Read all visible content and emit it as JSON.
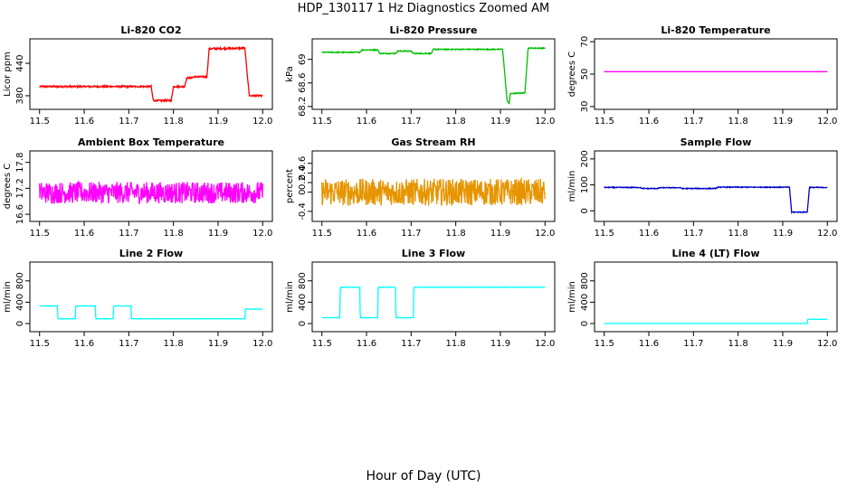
{
  "figure": {
    "title": "HDP_130117  1 Hz Diagnostics Zoomed AM",
    "xlabel": "Hour of Day (UTC)"
  },
  "chart_data": [
    {
      "type": "line",
      "title": "Li-820 CO2",
      "ylabel": "Licor ppm",
      "color": "#ff0000",
      "xlim": [
        11.5,
        12.0
      ],
      "ylim": [
        360,
        480
      ],
      "xticks": [
        "11.5",
        "11.6",
        "11.7",
        "11.8",
        "11.9",
        "12.0"
      ],
      "yticks": [
        380,
        440
      ],
      "series": [
        {
          "name": "CO2",
          "noise": 1.5,
          "points": [
            [
              11.5,
              397
            ],
            [
              11.75,
              397
            ],
            [
              11.755,
              371
            ],
            [
              11.795,
              371
            ],
            [
              11.8,
              397
            ],
            [
              11.825,
              397
            ],
            [
              11.83,
              413
            ],
            [
              11.84,
              413
            ],
            [
              11.845,
              415
            ],
            [
              11.875,
              415
            ],
            [
              11.88,
              467
            ],
            [
              11.96,
              468
            ],
            [
              11.97,
              380
            ],
            [
              12.0,
              380
            ]
          ]
        }
      ]
    },
    {
      "type": "line",
      "title": "Li-820 Pressure",
      "ylabel": "kPa",
      "color": "#00c000",
      "xlim": [
        11.5,
        12.0
      ],
      "ylim": [
        68.2,
        69.3
      ],
      "xticks": [
        "11.5",
        "11.6",
        "11.7",
        "11.8",
        "11.9",
        "12.0"
      ],
      "yticks": [
        68.2,
        68.6,
        69.0
      ],
      "series": [
        {
          "name": "Pressure",
          "noise": 0.008,
          "points": [
            [
              11.5,
              69.12
            ],
            [
              11.585,
              69.12
            ],
            [
              11.59,
              69.16
            ],
            [
              11.625,
              69.16
            ],
            [
              11.63,
              69.1
            ],
            [
              11.665,
              69.1
            ],
            [
              11.67,
              69.14
            ],
            [
              11.7,
              69.14
            ],
            [
              11.705,
              69.1
            ],
            [
              11.745,
              69.1
            ],
            [
              11.75,
              69.17
            ],
            [
              11.905,
              69.17
            ],
            [
              11.915,
              68.3
            ],
            [
              11.92,
              68.25
            ],
            [
              11.922,
              68.42
            ],
            [
              11.955,
              68.43
            ],
            [
              11.962,
              69.19
            ],
            [
              12.0,
              69.19
            ]
          ]
        }
      ]
    },
    {
      "type": "line",
      "title": "Li-820 Temperature",
      "ylabel": "degrees C",
      "color": "#ff00ff",
      "xlim": [
        11.5,
        12.0
      ],
      "ylim": [
        30,
        70
      ],
      "xticks": [
        "11.5",
        "11.6",
        "11.7",
        "11.8",
        "11.9",
        "12.0"
      ],
      "yticks": [
        30,
        50,
        70
      ],
      "series": [
        {
          "name": "Temperature",
          "noise": 0,
          "points": [
            [
              11.5,
              51.5
            ],
            [
              12.0,
              51.5
            ]
          ]
        }
      ]
    },
    {
      "type": "line",
      "title": "Ambient Box Temperature",
      "ylabel": "degrees C",
      "color": "#ff00ff",
      "xlim": [
        11.5,
        12.0
      ],
      "ylim": [
        16.5,
        18.0
      ],
      "xticks": [
        "11.5",
        "11.6",
        "11.7",
        "11.8",
        "11.9",
        "12.0"
      ],
      "yticks": [
        16.6,
        17.2,
        17.8
      ],
      "series": [
        {
          "name": "Box Temp",
          "noise": 0.25,
          "points": [
            [
              11.5,
              17.1
            ],
            [
              12.0,
              17.1
            ]
          ]
        }
      ]
    },
    {
      "type": "line",
      "title": "Gas Stream RH",
      "ylabel": "percent",
      "color": "#e69500",
      "xlim": [
        11.5,
        12.0
      ],
      "ylim": [
        -0.55,
        0.8
      ],
      "xticks": [
        "11.5",
        "11.6",
        "11.7",
        "11.8",
        "11.9",
        "12.0"
      ],
      "yticks": [
        -0.4,
        0.0,
        0.2,
        0.4,
        0.6
      ],
      "series": [
        {
          "name": "RH",
          "noise": 0.28,
          "points": [
            [
              11.5,
              0.0
            ],
            [
              12.0,
              0.0
            ]
          ]
        }
      ]
    },
    {
      "type": "line",
      "title": "Sample Flow",
      "ylabel": "ml/min",
      "color": "#0000cc",
      "xlim": [
        11.5,
        12.0
      ],
      "ylim": [
        -30,
        220
      ],
      "xticks": [
        "11.5",
        "11.6",
        "11.7",
        "11.8",
        "11.9",
        "12.0"
      ],
      "yticks": [
        0,
        100,
        200
      ],
      "series": [
        {
          "name": "Sample Flow",
          "noise": 1.5,
          "points": [
            [
              11.5,
              90
            ],
            [
              11.58,
              90
            ],
            [
              11.585,
              86
            ],
            [
              11.62,
              86
            ],
            [
              11.625,
              89
            ],
            [
              11.67,
              89
            ],
            [
              11.675,
              86
            ],
            [
              11.75,
              86
            ],
            [
              11.755,
              91
            ],
            [
              11.915,
              91
            ],
            [
              11.92,
              -5
            ],
            [
              11.955,
              -5
            ],
            [
              11.96,
              90
            ],
            [
              12.0,
              90
            ]
          ]
        }
      ]
    },
    {
      "type": "line",
      "title": "Line 2 Flow",
      "ylabel": "ml/min",
      "color": "#00ffff",
      "xlim": [
        11.5,
        12.0
      ],
      "ylim": [
        -100,
        1100
      ],
      "xticks": [
        "11.5",
        "11.6",
        "11.7",
        "11.8",
        "11.9",
        "12.0"
      ],
      "yticks": [
        0,
        400,
        800
      ],
      "series": [
        {
          "name": "Line 2",
          "noise": 3,
          "points": [
            [
              11.5,
              330
            ],
            [
              11.54,
              330
            ],
            [
              11.541,
              90
            ],
            [
              11.58,
              90
            ],
            [
              11.581,
              330
            ],
            [
              11.625,
              330
            ],
            [
              11.626,
              90
            ],
            [
              11.665,
              90
            ],
            [
              11.666,
              330
            ],
            [
              11.705,
              330
            ],
            [
              11.706,
              90
            ],
            [
              11.96,
              90
            ],
            [
              11.961,
              270
            ],
            [
              12.0,
              270
            ]
          ]
        }
      ]
    },
    {
      "type": "line",
      "title": "Line 3 Flow",
      "ylabel": "ml/min",
      "color": "#00ffff",
      "xlim": [
        11.5,
        12.0
      ],
      "ylim": [
        -100,
        1100
      ],
      "xticks": [
        "11.5",
        "11.6",
        "11.7",
        "11.8",
        "11.9",
        "12.0"
      ],
      "yticks": [
        0,
        400,
        800
      ],
      "series": [
        {
          "name": "Line 3",
          "noise": 3,
          "points": [
            [
              11.5,
              110
            ],
            [
              11.54,
              110
            ],
            [
              11.541,
              680
            ],
            [
              11.585,
              680
            ],
            [
              11.586,
              110
            ],
            [
              11.625,
              110
            ],
            [
              11.626,
              680
            ],
            [
              11.665,
              680
            ],
            [
              11.666,
              110
            ],
            [
              11.705,
              110
            ],
            [
              11.706,
              680
            ],
            [
              12.0,
              680
            ]
          ]
        }
      ]
    },
    {
      "type": "line",
      "title": "Line 4 (LT) Flow",
      "ylabel": "ml/min",
      "color": "#00ffff",
      "xlim": [
        11.5,
        12.0
      ],
      "ylim": [
        -100,
        1100
      ],
      "xticks": [
        "11.5",
        "11.6",
        "11.7",
        "11.8",
        "11.9",
        "12.0"
      ],
      "yticks": [
        0,
        400,
        800
      ],
      "series": [
        {
          "name": "Line 4",
          "noise": 0,
          "points": [
            [
              11.5,
              0
            ],
            [
              11.955,
              0
            ],
            [
              11.956,
              80
            ],
            [
              12.0,
              80
            ]
          ]
        }
      ]
    }
  ]
}
